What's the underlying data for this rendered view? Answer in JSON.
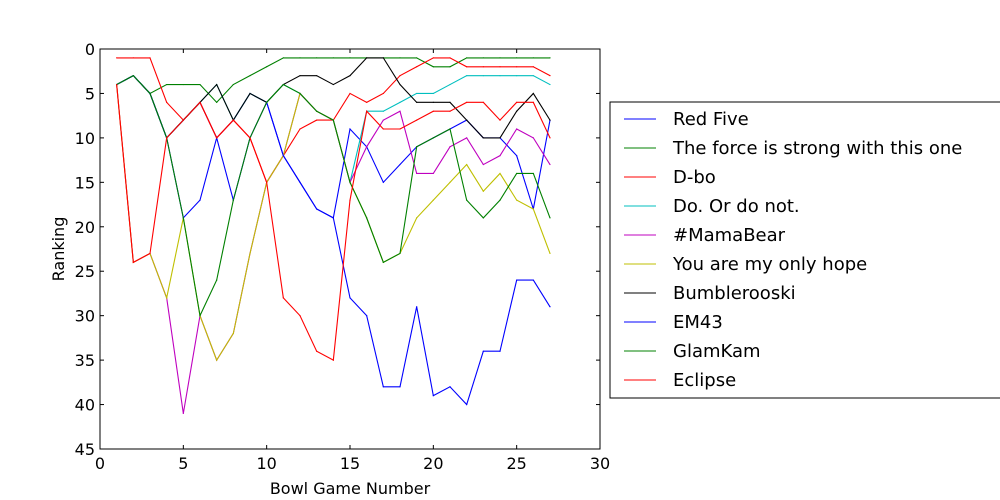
{
  "chart_data": {
    "type": "line",
    "title": "",
    "xlabel": "Bowl Game Number",
    "ylabel": "Ranking",
    "xlim": [
      0,
      30
    ],
    "ylim": [
      45,
      0
    ],
    "y_inverted": true,
    "xticks": [
      0,
      5,
      10,
      15,
      20,
      25,
      30
    ],
    "yticks": [
      0,
      5,
      10,
      15,
      20,
      25,
      30,
      35,
      40,
      45
    ],
    "grid": false,
    "legend_position": "right, outside plot",
    "x": [
      1,
      2,
      3,
      4,
      5,
      6,
      7,
      8,
      9,
      10,
      11,
      12,
      13,
      14,
      15,
      16,
      17,
      18,
      19,
      20,
      21,
      22,
      23,
      24,
      25,
      26,
      27
    ],
    "series": [
      {
        "name": "Red Five",
        "color": "#0000ff",
        "values": [
          4,
          3,
          5,
          10,
          8,
          6,
          10,
          8,
          5,
          6,
          12,
          15,
          18,
          19,
          9,
          11,
          15,
          13,
          11,
          10,
          9,
          8,
          10,
          10,
          12,
          18,
          8
        ]
      },
      {
        "name": "The force is strong with this one",
        "color": "#008000",
        "values": [
          4,
          3,
          5,
          4,
          4,
          4,
          6,
          4,
          3,
          2,
          1,
          1,
          1,
          1,
          1,
          1,
          1,
          1,
          1,
          2,
          2,
          1,
          1,
          1,
          1,
          1,
          1
        ]
      },
      {
        "name": "D-bo",
        "color": "#ff0000",
        "values": [
          1,
          1,
          1,
          6,
          8,
          6,
          10,
          8,
          10,
          15,
          12,
          9,
          8,
          8,
          5,
          6,
          5,
          3,
          2,
          1,
          1,
          2,
          2,
          2,
          2,
          2,
          3
        ]
      },
      {
        "name": "Do. Or do not.",
        "color": "#00bfbf",
        "values": [
          4,
          3,
          5,
          10,
          8,
          6,
          4,
          8,
          5,
          6,
          4,
          5,
          7,
          8,
          15,
          7,
          7,
          6,
          5,
          5,
          4,
          3,
          3,
          3,
          3,
          3,
          4
        ]
      },
      {
        "name": "#MamaBear",
        "color": "#bf00bf",
        "values": [
          4,
          24,
          23,
          28,
          41,
          30,
          35,
          32,
          23,
          15,
          12,
          5,
          7,
          8,
          15,
          11,
          8,
          7,
          14,
          14,
          11,
          10,
          13,
          12,
          9,
          10,
          13
        ]
      },
      {
        "name": "You are my only hope",
        "color": "#bfbf00",
        "values": [
          4,
          24,
          23,
          28,
          19,
          30,
          35,
          32,
          23,
          15,
          12,
          5,
          7,
          8,
          15,
          19,
          24,
          23,
          19,
          17,
          15,
          13,
          16,
          14,
          17,
          18,
          23
        ]
      },
      {
        "name": "Bumblerooski",
        "color": "#000000",
        "values": [
          4,
          3,
          5,
          10,
          8,
          6,
          4,
          8,
          5,
          6,
          4,
          3,
          3,
          4,
          3,
          1,
          1,
          4,
          6,
          6,
          6,
          8,
          10,
          10,
          7,
          5,
          8
        ]
      },
      {
        "name": "EM43",
        "color": "#0000ff",
        "values": [
          4,
          3,
          5,
          10,
          19,
          17,
          10,
          17,
          10,
          6,
          12,
          15,
          18,
          19,
          28,
          30,
          38,
          38,
          29,
          39,
          38,
          40,
          34,
          34,
          26,
          26,
          29
        ]
      },
      {
        "name": "GlamKam",
        "color": "#008000",
        "values": [
          4,
          3,
          5,
          10,
          19,
          30,
          26,
          17,
          10,
          6,
          4,
          5,
          7,
          8,
          15,
          19,
          24,
          23,
          11,
          10,
          9,
          17,
          19,
          17,
          14,
          14,
          19
        ]
      },
      {
        "name": "Eclipse",
        "color": "#ff0000",
        "values": [
          4,
          24,
          23,
          10,
          8,
          6,
          10,
          8,
          10,
          15,
          28,
          30,
          34,
          35,
          17,
          7,
          9,
          9,
          8,
          7,
          7,
          6,
          6,
          8,
          6,
          6,
          10
        ]
      }
    ]
  }
}
